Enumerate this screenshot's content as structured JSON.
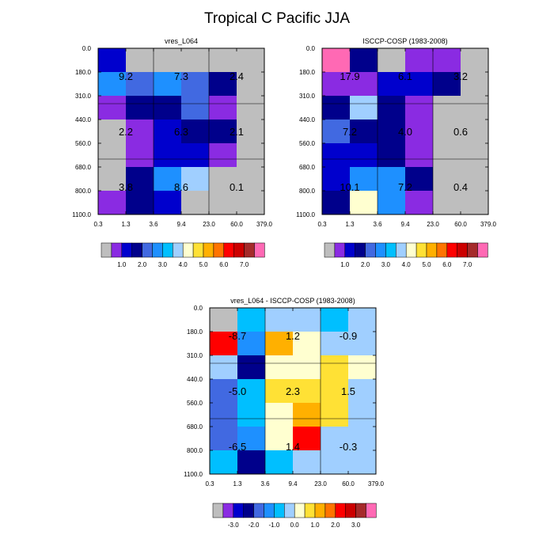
{
  "title": "Tropical C Pacific JJA",
  "chart_data": [
    {
      "type": "heatmap",
      "title": "vres_L064",
      "x_ticks": [
        "0.3",
        "1.3",
        "3.6",
        "9.4",
        "23.0",
        "60.0",
        "379.0"
      ],
      "y_ticks": [
        "0.0",
        "180.0",
        "310.0",
        "440.0",
        "560.0",
        "680.0",
        "800.0",
        "1100.0"
      ],
      "colors": [
        [
          "#0000CD",
          "#BEBEBE",
          "#BEBEBE",
          "#BEBEBE",
          "#BEBEBE",
          "#BEBEBE"
        ],
        [
          "#1E90FF",
          "#4169E1",
          "#1E90FF",
          "#4169E1",
          "#00008B",
          "#BEBEBE"
        ],
        [
          "#8A2BE2",
          "#00008B",
          "#00008B",
          "#4169E1",
          "#8A2BE2",
          "#BEBEBE"
        ],
        [
          "#BEBEBE",
          "#8A2BE2",
          "#0000CD",
          "#00008B",
          "#00008B",
          "#BEBEBE"
        ],
        [
          "#BEBEBE",
          "#8A2BE2",
          "#0000CD",
          "#0000CD",
          "#8A2BE2",
          "#BEBEBE"
        ],
        [
          "#BEBEBE",
          "#00008B",
          "#1E90FF",
          "#A0CFFF",
          "#BEBEBE",
          "#BEBEBE"
        ],
        [
          "#8A2BE2",
          "#00008B",
          "#0000CD",
          "#BEBEBE",
          "#BEBEBE",
          "#BEBEBE"
        ]
      ],
      "annotations": [
        {
          "text": "9.2",
          "tau_bin": 0,
          "pressure_bin": 0
        },
        {
          "text": "7.3",
          "tau_bin": 1,
          "pressure_bin": 0
        },
        {
          "text": "2.4",
          "tau_bin": 2,
          "pressure_bin": 0
        },
        {
          "text": "2.2",
          "tau_bin": 0,
          "pressure_bin": 1
        },
        {
          "text": "6.3",
          "tau_bin": 1,
          "pressure_bin": 1
        },
        {
          "text": "2.1",
          "tau_bin": 2,
          "pressure_bin": 1
        },
        {
          "text": "3.8",
          "tau_bin": 0,
          "pressure_bin": 2
        },
        {
          "text": "8.6",
          "tau_bin": 1,
          "pressure_bin": 2
        },
        {
          "text": "0.1",
          "tau_bin": 2,
          "pressure_bin": 2
        }
      ],
      "colorbar": {
        "colors": [
          "#BEBEBE",
          "#8A2BE2",
          "#0000CD",
          "#00008B",
          "#4169E1",
          "#1E90FF",
          "#00BFFF",
          "#A0CFFF",
          "#FFFFD0",
          "#FFE135",
          "#FFB000",
          "#FF7400",
          "#FF0000",
          "#CC0000",
          "#A52A2A",
          "#FF69B4"
        ],
        "labels": [
          {
            "text": "1.0",
            "edge": 2
          },
          {
            "text": "2.0",
            "edge": 4
          },
          {
            "text": "3.0",
            "edge": 6
          },
          {
            "text": "4.0",
            "edge": 8
          },
          {
            "text": "5.0",
            "edge": 10
          },
          {
            "text": "6.0",
            "edge": 12
          },
          {
            "text": "7.0",
            "edge": 14
          }
        ]
      }
    },
    {
      "type": "heatmap",
      "title": "ISCCP-COSP (1983-2008)",
      "x_ticks": [
        "0.3",
        "1.3",
        "3.6",
        "9.4",
        "23.0",
        "60.0",
        "379.0"
      ],
      "y_ticks": [
        "0.0",
        "180.0",
        "310.0",
        "440.0",
        "560.0",
        "680.0",
        "800.0",
        "1100.0"
      ],
      "colors": [
        [
          "#FF69B4",
          "#00008B",
          "#BEBEBE",
          "#8A2BE2",
          "#8A2BE2",
          "#BEBEBE"
        ],
        [
          "#8A2BE2",
          "#8A2BE2",
          "#0000CD",
          "#0000CD",
          "#00008B",
          "#BEBEBE"
        ],
        [
          "#00008B",
          "#A0CFFF",
          "#00008B",
          "#8A2BE2",
          "#BEBEBE",
          "#BEBEBE"
        ],
        [
          "#4169E1",
          "#00008B",
          "#00008B",
          "#8A2BE2",
          "#BEBEBE",
          "#BEBEBE"
        ],
        [
          "#0000CD",
          "#0000CD",
          "#00008B",
          "#8A2BE2",
          "#BEBEBE",
          "#BEBEBE"
        ],
        [
          "#0000CD",
          "#1E90FF",
          "#1E90FF",
          "#00008B",
          "#BEBEBE",
          "#BEBEBE"
        ],
        [
          "#00008B",
          "#FFFFD0",
          "#1E90FF",
          "#8A2BE2",
          "#BEBEBE",
          "#BEBEBE"
        ]
      ],
      "annotations": [
        {
          "text": "17.9",
          "tau_bin": 0,
          "pressure_bin": 0
        },
        {
          "text": "6.1",
          "tau_bin": 1,
          "pressure_bin": 0
        },
        {
          "text": "3.2",
          "tau_bin": 2,
          "pressure_bin": 0
        },
        {
          "text": "7.2",
          "tau_bin": 0,
          "pressure_bin": 1
        },
        {
          "text": "4.0",
          "tau_bin": 1,
          "pressure_bin": 1
        },
        {
          "text": "0.6",
          "tau_bin": 2,
          "pressure_bin": 1
        },
        {
          "text": "10.1",
          "tau_bin": 0,
          "pressure_bin": 2
        },
        {
          "text": "7.2",
          "tau_bin": 1,
          "pressure_bin": 2
        },
        {
          "text": "0.4",
          "tau_bin": 2,
          "pressure_bin": 2
        }
      ],
      "colorbar": {
        "colors": [
          "#BEBEBE",
          "#8A2BE2",
          "#0000CD",
          "#00008B",
          "#4169E1",
          "#1E90FF",
          "#00BFFF",
          "#A0CFFF",
          "#FFFFD0",
          "#FFE135",
          "#FFB000",
          "#FF7400",
          "#FF0000",
          "#CC0000",
          "#A52A2A",
          "#FF69B4"
        ],
        "labels": [
          {
            "text": "1.0",
            "edge": 2
          },
          {
            "text": "2.0",
            "edge": 4
          },
          {
            "text": "3.0",
            "edge": 6
          },
          {
            "text": "4.0",
            "edge": 8
          },
          {
            "text": "5.0",
            "edge": 10
          },
          {
            "text": "6.0",
            "edge": 12
          },
          {
            "text": "7.0",
            "edge": 14
          }
        ]
      }
    },
    {
      "type": "heatmap",
      "title": "vres_L064 - ISCCP-COSP (1983-2008)",
      "x_ticks": [
        "0.3",
        "1.3",
        "3.6",
        "9.4",
        "23.0",
        "60.0",
        "379.0"
      ],
      "y_ticks": [
        "0.0",
        "180.0",
        "310.0",
        "440.0",
        "560.0",
        "680.0",
        "800.0",
        "1100.0"
      ],
      "colors": [
        [
          "#BEBEBE",
          "#00BFFF",
          "#A0CFFF",
          "#A0CFFF",
          "#00BFFF",
          "#A0CFFF"
        ],
        [
          "#FF0000",
          "#1E90FF",
          "#FFB000",
          "#FFFFD0",
          "#A0CFFF",
          "#A0CFFF"
        ],
        [
          "#A0CFFF",
          "#00008B",
          "#FFFFD0",
          "#FFFFD0",
          "#FFE135",
          "#FFFFD0"
        ],
        [
          "#4169E1",
          "#00BFFF",
          "#FFE135",
          "#FFE135",
          "#FFE135",
          "#A0CFFF"
        ],
        [
          "#4169E1",
          "#00BFFF",
          "#FFFFD0",
          "#FFB000",
          "#FFE135",
          "#A0CFFF"
        ],
        [
          "#4169E1",
          "#1E90FF",
          "#FFFFD0",
          "#FF0000",
          "#A0CFFF",
          "#A0CFFF"
        ],
        [
          "#00BFFF",
          "#00008B",
          "#00BFFF",
          "#A0CFFF",
          "#A0CFFF",
          "#A0CFFF"
        ]
      ],
      "annotations": [
        {
          "text": "-8.7",
          "tau_bin": 0,
          "pressure_bin": 0
        },
        {
          "text": "1.2",
          "tau_bin": 1,
          "pressure_bin": 0
        },
        {
          "text": "-0.9",
          "tau_bin": 2,
          "pressure_bin": 0
        },
        {
          "text": "-5.0",
          "tau_bin": 0,
          "pressure_bin": 1
        },
        {
          "text": "2.3",
          "tau_bin": 1,
          "pressure_bin": 1
        },
        {
          "text": "1.5",
          "tau_bin": 2,
          "pressure_bin": 1
        },
        {
          "text": "-6.5",
          "tau_bin": 0,
          "pressure_bin": 2
        },
        {
          "text": "1.4",
          "tau_bin": 1,
          "pressure_bin": 2
        },
        {
          "text": "-0.3",
          "tau_bin": 2,
          "pressure_bin": 2
        }
      ],
      "colorbar": {
        "colors": [
          "#BEBEBE",
          "#8A2BE2",
          "#0000CD",
          "#00008B",
          "#4169E1",
          "#1E90FF",
          "#00BFFF",
          "#A0CFFF",
          "#FFFFD0",
          "#FFE135",
          "#FFB000",
          "#FF7400",
          "#FF0000",
          "#CC0000",
          "#A52A2A",
          "#FF69B4"
        ],
        "labels": [
          {
            "text": "-3.0",
            "edge": 2
          },
          {
            "text": "-2.0",
            "edge": 4
          },
          {
            "text": "-1.0",
            "edge": 6
          },
          {
            "text": "0.0",
            "edge": 8
          },
          {
            "text": "1.0",
            "edge": 10
          },
          {
            "text": "2.0",
            "edge": 12
          },
          {
            "text": "3.0",
            "edge": 14
          }
        ]
      }
    }
  ]
}
